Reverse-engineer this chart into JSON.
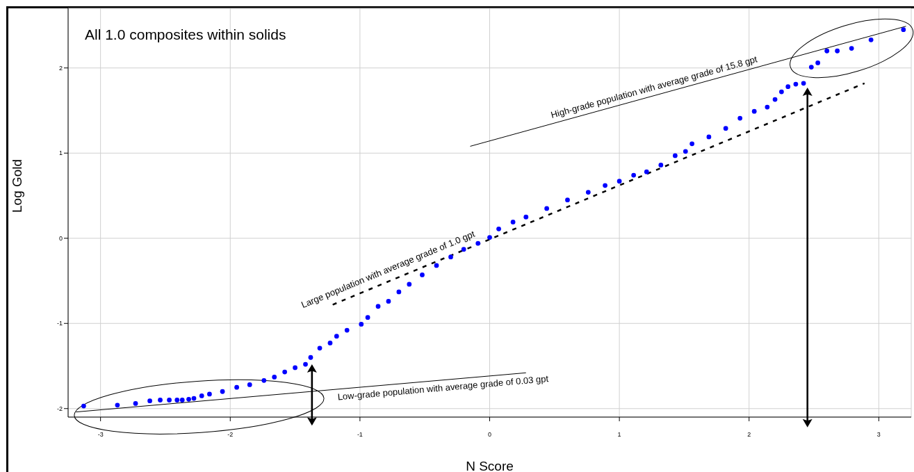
{
  "chart_data": {
    "type": "scatter",
    "title": "All 1.0 composites within solids",
    "xlabel": "N Score",
    "ylabel": "Log Gold",
    "xlim": [
      -3.25,
      3.25
    ],
    "ylim": [
      -2.1,
      2.7
    ],
    "xticks": [
      -3,
      -2,
      -1,
      0,
      1,
      2,
      3
    ],
    "yticks": [
      -2,
      -1,
      0,
      1,
      2
    ],
    "grid": true,
    "series": [
      {
        "marker": "circle",
        "color": "#0000ff",
        "x": [
          -3.13,
          -2.87,
          -2.73,
          -2.62,
          -2.54,
          -2.47,
          -2.41,
          -2.37,
          -2.32,
          -2.28,
          -2.22,
          -2.16,
          -2.06,
          -1.95,
          -1.85,
          -1.74,
          -1.66,
          -1.58,
          -1.5,
          -1.42,
          -1.38,
          -1.31,
          -1.23,
          -1.18,
          -1.1,
          -0.99,
          -0.94,
          -0.86,
          -0.78,
          -0.7,
          -0.62,
          -0.52,
          -0.41,
          -0.3,
          -0.2,
          -0.09,
          0,
          0.07,
          0.18,
          0.28,
          0.44,
          0.6,
          0.76,
          0.89,
          1.0,
          1.11,
          1.21,
          1.32,
          1.43,
          1.51,
          1.56,
          1.69,
          1.82,
          1.93,
          2.04,
          2.14,
          2.2,
          2.25,
          2.3,
          2.36,
          2.42,
          2.48,
          2.53,
          2.6,
          2.68,
          2.79,
          2.94,
          3.19
        ],
        "values": [
          -1.97,
          -1.96,
          -1.94,
          -1.91,
          -1.9,
          -1.9,
          -1.9,
          -1.9,
          -1.89,
          -1.88,
          -1.85,
          -1.83,
          -1.8,
          -1.75,
          -1.72,
          -1.67,
          -1.63,
          -1.57,
          -1.52,
          -1.48,
          -1.4,
          -1.29,
          -1.23,
          -1.15,
          -1.08,
          -1.01,
          -0.93,
          -0.8,
          -0.74,
          -0.63,
          -0.54,
          -0.43,
          -0.32,
          -0.22,
          -0.13,
          -0.06,
          0.01,
          0.11,
          0.19,
          0.25,
          0.35,
          0.45,
          0.54,
          0.62,
          0.67,
          0.74,
          0.78,
          0.86,
          0.97,
          1.02,
          1.11,
          1.19,
          1.29,
          1.41,
          1.49,
          1.54,
          1.63,
          1.72,
          1.78,
          1.81,
          1.82,
          2.01,
          2.06,
          2.2,
          2.2,
          2.23,
          2.33,
          2.45
        ]
      },
      {
        "type": "line",
        "color": "#000000",
        "line_style": "dashed",
        "x": [
          -1.21,
          2.89
        ],
        "values": [
          -0.78,
          1.82
        ]
      },
      {
        "type": "line",
        "color": "#000000",
        "line_style": "solid",
        "x": [
          -0.15,
          3.21
        ],
        "values": [
          1.08,
          2.49
        ]
      },
      {
        "type": "line",
        "color": "#000000",
        "line_style": "solid",
        "x": [
          -3.19,
          0.28
        ],
        "values": [
          -2.04,
          -1.58
        ]
      }
    ],
    "annotations": [
      "Large population with average grade of 1.0 gpt",
      "High-grade population with average grade of 15.8 gpt",
      "Low-grade population with average grade of 0.03 gpt"
    ]
  }
}
